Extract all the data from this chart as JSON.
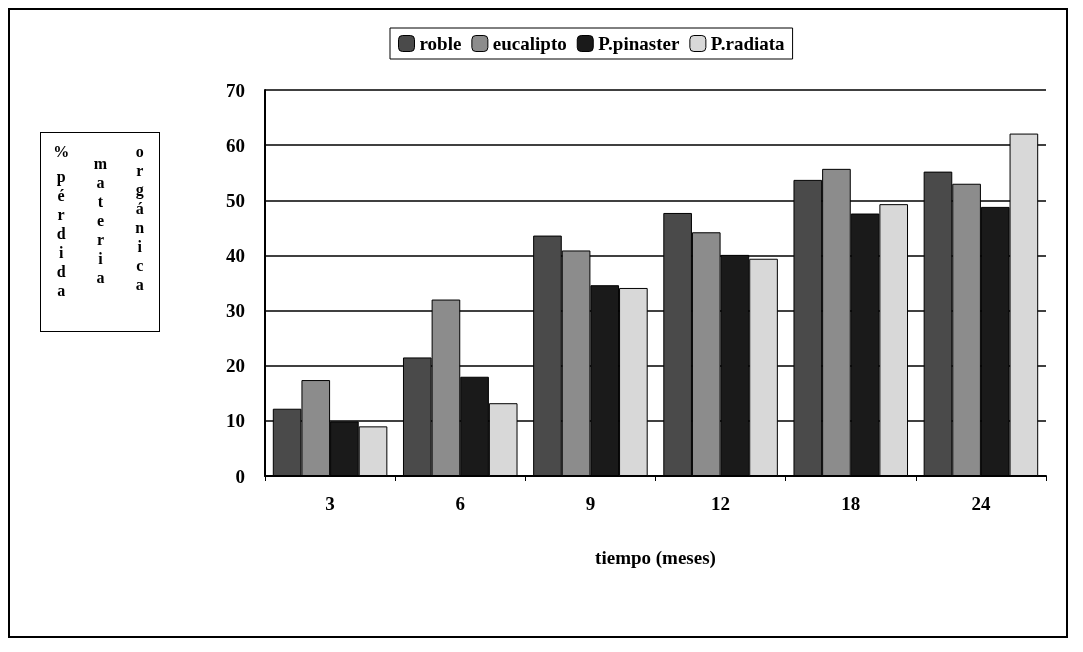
{
  "chart_data": {
    "type": "bar",
    "xlabel": "tiempo (meses)",
    "ylabel": "% pérdida materia orgánica",
    "categories": [
      "3",
      "6",
      "9",
      "12",
      "18",
      "24"
    ],
    "series": [
      {
        "name": "roble",
        "color": "#4a4a4a",
        "values": [
          12.2,
          21.5,
          43.6,
          47.7,
          53.7,
          55.2
        ]
      },
      {
        "name": "eucalipto",
        "color": "#8c8c8c",
        "values": [
          17.4,
          32.0,
          40.9,
          44.2,
          55.7,
          53.0
        ]
      },
      {
        "name": "P.pinaster",
        "color": "#1a1a1a",
        "values": [
          9.9,
          18.0,
          34.6,
          40.1,
          47.6,
          48.8
        ]
      },
      {
        "name": "P.radiata",
        "color": "#d8d8d8",
        "values": [
          9.0,
          13.2,
          34.1,
          39.4,
          49.3,
          62.1
        ]
      }
    ],
    "ylim": [
      0,
      70
    ],
    "yticks": [
      0,
      10,
      20,
      30,
      40,
      50,
      60,
      70
    ],
    "grid": "y",
    "legend": "top"
  }
}
